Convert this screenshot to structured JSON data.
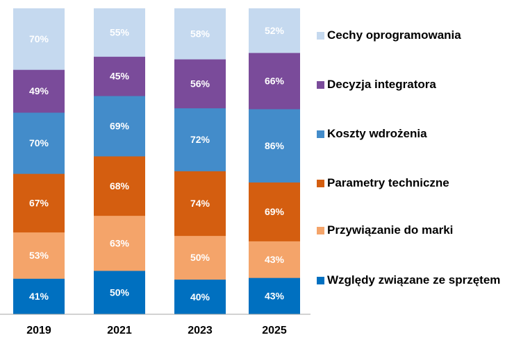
{
  "chart_data": {
    "type": "bar",
    "stacked": true,
    "normalized": "100%",
    "title": "",
    "xlabel": "",
    "ylabel": "",
    "categories": [
      "2019",
      "2021",
      "2023",
      "2025"
    ],
    "series": [
      {
        "name": "Względy związane ze sprzętem",
        "color": "#0070C0",
        "values": [
          41,
          50,
          40,
          43
        ],
        "labels": [
          "41%",
          "50%",
          "40%",
          "43%"
        ]
      },
      {
        "name": "Przywiązanie do marki",
        "color": "#F4A46A",
        "values": [
          53,
          63,
          50,
          43
        ],
        "labels": [
          "53%",
          "63%",
          "50%",
          "43%"
        ]
      },
      {
        "name": "Parametry techniczne",
        "color": "#D45E10",
        "values": [
          67,
          68,
          74,
          69
        ],
        "labels": [
          "67%",
          "68%",
          "74%",
          "69%"
        ]
      },
      {
        "name": "Koszty wdrożenia",
        "color": "#438CCA",
        "values": [
          70,
          69,
          72,
          86
        ],
        "labels": [
          "70%",
          "69%",
          "72%",
          "86%"
        ]
      },
      {
        "name": "Decyzja integratora",
        "color": "#7A4B9A",
        "values": [
          49,
          45,
          56,
          66
        ],
        "labels": [
          "49%",
          "45%",
          "56%",
          "66%"
        ]
      },
      {
        "name": "Cechy oprogramowania",
        "color": "#C5D9EF",
        "values": [
          70,
          55,
          58,
          52
        ],
        "labels": [
          "70%",
          "55%",
          "58%",
          "52%"
        ]
      }
    ],
    "legend": {
      "placement": "right",
      "order": [
        "Cechy oprogramowania",
        "Decyzja integratora",
        "Koszty wdrożenia",
        "Parametry techniczne",
        "Przywiązanie do marki",
        "Względy związane ze sprzętem"
      ]
    },
    "grid": false
  }
}
